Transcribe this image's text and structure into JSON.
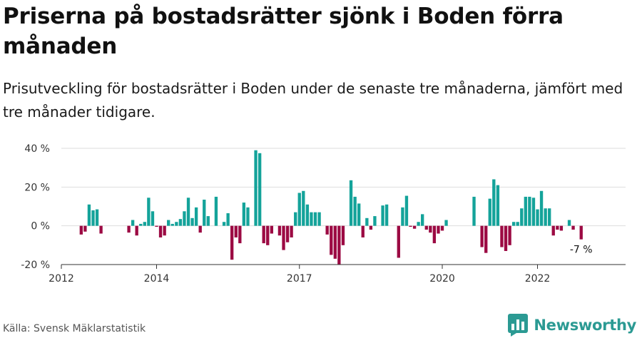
{
  "header": {
    "title": "Priserna på bostadsrätter sjönk i Boden förra månaden",
    "subtitle": "Prisutveckling för bostadsrätter i Boden under de senaste tre månaderna, jämfört med tre månader tidigare."
  },
  "footer": {
    "source": "Källa: Svensk Mäklarstatistik",
    "brand": "Newsworthy"
  },
  "colors": {
    "positive": "#14a39a",
    "negative": "#9c0a43",
    "grid": "#dddddd",
    "axis": "#333333"
  },
  "chart_data": {
    "type": "bar",
    "title": "Priserna på bostadsrätter sjönk i Boden förra månaden",
    "subtitle": "Prisutveckling för bostadsrätter i Boden under de senaste tre månaderna, jämfört med tre månader tidigare.",
    "ylabel": "",
    "xlabel": "",
    "ylim": [
      -20,
      40
    ],
    "yticks": [
      -20,
      0,
      20,
      40
    ],
    "ytick_labels": [
      "-20 %",
      "0 %",
      "20 %",
      "40 %"
    ],
    "xlim": [
      2012.0,
      2023.85
    ],
    "xticks": [
      2012,
      2014,
      2017,
      2020,
      2022
    ],
    "xtick_labels": [
      "2012",
      "2014",
      "2017",
      "2020",
      "2022"
    ],
    "annotation": {
      "x": 2022.917,
      "label": "-7 %"
    },
    "bars": [
      {
        "x": 2012.417,
        "y": -4.5
      },
      {
        "x": 2012.5,
        "y": -3.0
      },
      {
        "x": 2012.583,
        "y": 11.0
      },
      {
        "x": 2012.667,
        "y": 8.0
      },
      {
        "x": 2012.75,
        "y": 8.5
      },
      {
        "x": 2012.833,
        "y": -4.0
      },
      {
        "x": 2013.417,
        "y": -3.5
      },
      {
        "x": 2013.5,
        "y": 3.0
      },
      {
        "x": 2013.583,
        "y": -5.0
      },
      {
        "x": 2013.667,
        "y": 1.0
      },
      {
        "x": 2013.75,
        "y": 2.0
      },
      {
        "x": 2013.833,
        "y": 14.5
      },
      {
        "x": 2013.917,
        "y": 7.5
      },
      {
        "x": 2014.0,
        "y": -0.5
      },
      {
        "x": 2014.083,
        "y": -6.0
      },
      {
        "x": 2014.167,
        "y": -5.0
      },
      {
        "x": 2014.25,
        "y": 3.0
      },
      {
        "x": 2014.333,
        "y": 1.0
      },
      {
        "x": 2014.417,
        "y": 2.0
      },
      {
        "x": 2014.5,
        "y": 3.5
      },
      {
        "x": 2014.583,
        "y": 7.5
      },
      {
        "x": 2014.667,
        "y": 14.5
      },
      {
        "x": 2014.75,
        "y": 4.0
      },
      {
        "x": 2014.833,
        "y": 9.5
      },
      {
        "x": 2014.917,
        "y": -3.5
      },
      {
        "x": 2015.0,
        "y": 13.5
      },
      {
        "x": 2015.083,
        "y": 5.0
      },
      {
        "x": 2015.25,
        "y": 15.0
      },
      {
        "x": 2015.417,
        "y": 2.0
      },
      {
        "x": 2015.5,
        "y": 6.5
      },
      {
        "x": 2015.583,
        "y": -17.5
      },
      {
        "x": 2015.667,
        "y": -6.0
      },
      {
        "x": 2015.75,
        "y": -9.0
      },
      {
        "x": 2015.833,
        "y": 12.0
      },
      {
        "x": 2015.917,
        "y": 9.5
      },
      {
        "x": 2016.083,
        "y": 39.0
      },
      {
        "x": 2016.167,
        "y": 37.5
      },
      {
        "x": 2016.25,
        "y": -9.0
      },
      {
        "x": 2016.333,
        "y": -10.0
      },
      {
        "x": 2016.417,
        "y": -4.0
      },
      {
        "x": 2016.583,
        "y": -5.0
      },
      {
        "x": 2016.667,
        "y": -12.5
      },
      {
        "x": 2016.75,
        "y": -8.5
      },
      {
        "x": 2016.833,
        "y": -6.0
      },
      {
        "x": 2016.917,
        "y": 7.0
      },
      {
        "x": 2017.0,
        "y": 17.0
      },
      {
        "x": 2017.083,
        "y": 18.0
      },
      {
        "x": 2017.167,
        "y": 11.0
      },
      {
        "x": 2017.25,
        "y": 7.0
      },
      {
        "x": 2017.333,
        "y": 7.0
      },
      {
        "x": 2017.417,
        "y": 7.0
      },
      {
        "x": 2017.583,
        "y": -4.5
      },
      {
        "x": 2017.667,
        "y": -15.0
      },
      {
        "x": 2017.75,
        "y": -17.0
      },
      {
        "x": 2017.833,
        "y": -20.0
      },
      {
        "x": 2017.917,
        "y": -10.0
      },
      {
        "x": 2018.083,
        "y": 23.5
      },
      {
        "x": 2018.167,
        "y": 15.0
      },
      {
        "x": 2018.25,
        "y": 11.5
      },
      {
        "x": 2018.333,
        "y": -6.0
      },
      {
        "x": 2018.417,
        "y": 4.0
      },
      {
        "x": 2018.5,
        "y": -2.0
      },
      {
        "x": 2018.583,
        "y": 5.0
      },
      {
        "x": 2018.75,
        "y": 10.5
      },
      {
        "x": 2018.833,
        "y": 11.0
      },
      {
        "x": 2019.083,
        "y": -16.5
      },
      {
        "x": 2019.167,
        "y": 9.5
      },
      {
        "x": 2019.25,
        "y": 15.5
      },
      {
        "x": 2019.333,
        "y": -0.5
      },
      {
        "x": 2019.417,
        "y": -1.5
      },
      {
        "x": 2019.5,
        "y": 2.0
      },
      {
        "x": 2019.583,
        "y": 6.0
      },
      {
        "x": 2019.667,
        "y": -2.0
      },
      {
        "x": 2019.75,
        "y": -3.5
      },
      {
        "x": 2019.833,
        "y": -9.0
      },
      {
        "x": 2019.917,
        "y": -4.0
      },
      {
        "x": 2020.0,
        "y": -2.5
      },
      {
        "x": 2020.083,
        "y": 3.0
      },
      {
        "x": 2020.667,
        "y": 15.0
      },
      {
        "x": 2020.833,
        "y": -11.0
      },
      {
        "x": 2020.917,
        "y": -14.0
      },
      {
        "x": 2021.0,
        "y": 14.0
      },
      {
        "x": 2021.083,
        "y": 24.0
      },
      {
        "x": 2021.167,
        "y": 21.0
      },
      {
        "x": 2021.25,
        "y": -11.0
      },
      {
        "x": 2021.333,
        "y": -13.0
      },
      {
        "x": 2021.417,
        "y": -10.0
      },
      {
        "x": 2021.5,
        "y": 2.0
      },
      {
        "x": 2021.583,
        "y": 2.0
      },
      {
        "x": 2021.667,
        "y": 9.0
      },
      {
        "x": 2021.75,
        "y": 15.0
      },
      {
        "x": 2021.833,
        "y": 15.0
      },
      {
        "x": 2021.917,
        "y": 14.5
      },
      {
        "x": 2022.0,
        "y": 8.5
      },
      {
        "x": 2022.083,
        "y": 18.0
      },
      {
        "x": 2022.167,
        "y": 9.0
      },
      {
        "x": 2022.25,
        "y": 9.0
      },
      {
        "x": 2022.333,
        "y": -5.0
      },
      {
        "x": 2022.417,
        "y": -2.0
      },
      {
        "x": 2022.5,
        "y": -2.5
      },
      {
        "x": 2022.667,
        "y": 3.0
      },
      {
        "x": 2022.75,
        "y": -2.0
      },
      {
        "x": 2022.917,
        "y": -7.0
      }
    ]
  }
}
